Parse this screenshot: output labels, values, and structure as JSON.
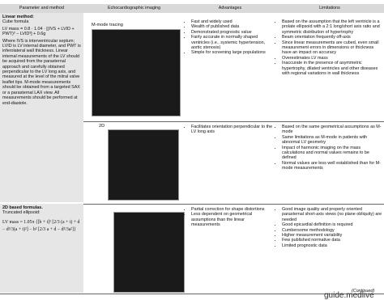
{
  "header": {
    "columns": [
      "Parameter and method",
      "Echocardiographic imaging",
      "Advantages",
      "Limitations"
    ]
  },
  "sections": [
    {
      "label": "Linear method:",
      "rows": [
        {
          "method": [
            "Cube formula",
            "LV mass = 0.8 · 1.04 · [(IVS + LVID + PWT)³ − LVID³] + 0.6g",
            "Where IVS is interventricular septum; LVID is LV internal diameter, and PWT is inferolateral wall thickness. Linear internal measurements of the LV should be acquired from the parasternal approach and carefully obtained perpendicular to the LV long axis, and measured at the level of the mitral valve leaflet tips. M-mode measurements should be obtained from a targeted SAX or a parasternal LAX view. All measurements should be performed at end-diastole."
          ],
          "imaging": "M-mode tracing",
          "advantages": [
            "Fast and widely used",
            "Wealth of published data",
            "Demonstrated prognostic value",
            "Fairly accurate in normally shaped ventricles (i.e., systemic hypertension, aortic stenosis)",
            "Simple for screening large populations"
          ],
          "limitations": [
            "Based on the assumption that the left ventricle is a prolate ellipsoid with a 2:1 long/short axis ratio and symmetric distribution of hypertrophy",
            "Beam orientation frequently off-axis",
            "Since linear measurements are cubed, even small measurement errors in dimensions or thickness have an impact on accuracy",
            "Overestimates LV mass",
            "Inaccurate in the presence of asymmetric hypertrophy, dilated ventricles and other diseases with regional variations in wall thickness"
          ]
        },
        {
          "method": [],
          "imaging": "2D",
          "advantages": [
            "Facilitates orientation perpendicular to the LV long axis"
          ],
          "limitations": [
            "Based on the same geometrical assumptions as M-mode",
            "Same limitations as M-mode in patients with abnormal LV geometry",
            "Impact of harmonic imaging on the mass calculations and normal values remains to be defined",
            "Normal values are less well established than for M-mode measurements"
          ]
        }
      ]
    },
    {
      "label": "2D based formulas.",
      "rows": [
        {
          "method": [
            "Truncated ellipsoid:",
            "LV mass = 1.05π {[b + t]² [2/3 (a + t) + d − d³/3(a + t)²] − b² [2/3 a + d − d³/3a²]}"
          ],
          "imaging": "",
          "advantages": [
            "Partial correction for shape distortions",
            "Less dependent on geometrical assumptions than the linear measurements"
          ],
          "limitations": [
            "Good image quality and properly oriented parasternal short-axis views (no plane obliquity) are needed",
            "Good epicardial definition is required",
            "Cumbersome methodology",
            "Higher measurement variability",
            "Few published normative data",
            "Limited prognostic data"
          ]
        }
      ]
    }
  ],
  "footer": {
    "continued": "(Continued)",
    "watermark": "guide.medlive"
  }
}
